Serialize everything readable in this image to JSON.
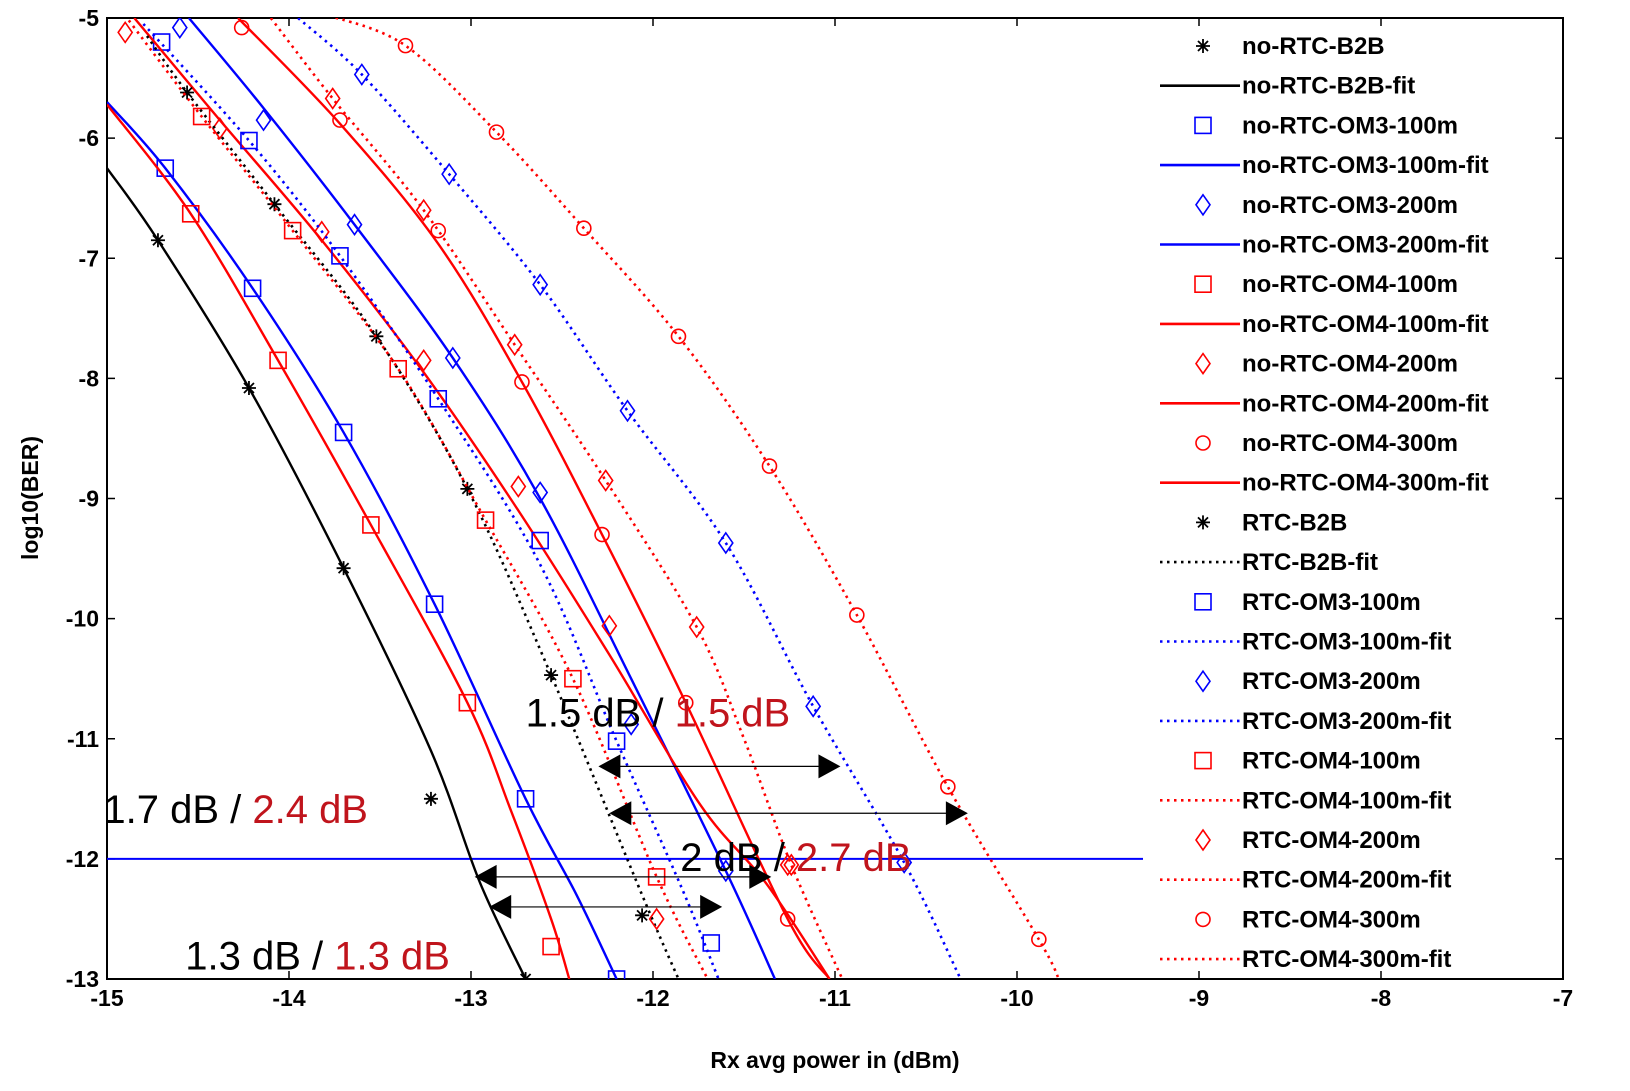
{
  "chart_data": {
    "type": "line",
    "xlabel": "Rx avg power in (dBm)",
    "ylabel": "log10(BER)",
    "xlim": [
      -15,
      -7
    ],
    "ylim": [
      -13,
      -5
    ],
    "xticks": [
      "-15",
      "-14",
      "-13",
      "-12",
      "-11",
      "-10",
      "-9",
      "-8",
      "-7"
    ],
    "yticks": [
      "-5",
      "-6",
      "-7",
      "-8",
      "-9",
      "-10",
      "-11",
      "-12",
      "-13"
    ],
    "grid": false,
    "legend_position": "right",
    "reference_line": {
      "y": -12,
      "color": "#0000ff"
    },
    "colors": {
      "black": "#000000",
      "blue": "#0000ff",
      "red": "#ff0000",
      "annotation_red": "#c0141c"
    },
    "series": [
      {
        "name": "no-RTC-B2B",
        "color": "#000000",
        "marker": "star",
        "line": "none",
        "points": [
          [
            -14.72,
            -6.85
          ],
          [
            -14.22,
            -8.08
          ],
          [
            -13.7,
            -9.58
          ],
          [
            -13.22,
            -11.5
          ],
          [
            -12.7,
            -13.0
          ]
        ]
      },
      {
        "name": "no-RTC-B2B-fit",
        "color": "#000000",
        "marker": "none",
        "line": "solid",
        "points": [
          [
            -15.0,
            -6.25
          ],
          [
            -14.72,
            -6.85
          ],
          [
            -14.22,
            -8.08
          ],
          [
            -13.7,
            -9.58
          ],
          [
            -13.22,
            -11.1
          ],
          [
            -12.95,
            -12.2
          ],
          [
            -12.7,
            -13.0
          ]
        ]
      },
      {
        "name": "no-RTC-OM3-100m",
        "color": "#0000ff",
        "marker": "square",
        "line": "none",
        "points": [
          [
            -14.7,
            -5.2
          ],
          [
            -14.68,
            -6.25
          ],
          [
            -14.2,
            -7.25
          ],
          [
            -13.7,
            -8.45
          ],
          [
            -13.2,
            -9.88
          ],
          [
            -12.7,
            -11.5
          ],
          [
            -12.2,
            -13.0
          ]
        ]
      },
      {
        "name": "no-RTC-OM3-100m-fit",
        "color": "#0000ff",
        "marker": "none",
        "line": "solid",
        "points": [
          [
            -15.0,
            -5.7
          ],
          [
            -14.68,
            -6.25
          ],
          [
            -14.2,
            -7.25
          ],
          [
            -13.7,
            -8.45
          ],
          [
            -13.2,
            -9.88
          ],
          [
            -12.7,
            -11.5
          ],
          [
            -12.42,
            -12.3
          ],
          [
            -12.2,
            -13.0
          ]
        ]
      },
      {
        "name": "no-RTC-OM3-200m",
        "color": "#0000ff",
        "marker": "diamond",
        "line": "none",
        "points": [
          [
            -14.6,
            -5.08
          ],
          [
            -14.14,
            -5.85
          ],
          [
            -13.64,
            -6.72
          ],
          [
            -13.1,
            -7.83
          ],
          [
            -12.62,
            -8.95
          ],
          [
            -12.12,
            -10.88
          ],
          [
            -11.6,
            -12.1
          ]
        ]
      },
      {
        "name": "no-RTC-OM3-200m-fit",
        "color": "#0000ff",
        "marker": "none",
        "line": "solid",
        "points": [
          [
            -14.55,
            -5.0
          ],
          [
            -14.14,
            -5.75
          ],
          [
            -13.64,
            -6.72
          ],
          [
            -13.1,
            -7.83
          ],
          [
            -12.62,
            -9.0
          ],
          [
            -12.12,
            -10.5
          ],
          [
            -11.6,
            -12.1
          ],
          [
            -11.33,
            -13.0
          ]
        ]
      },
      {
        "name": "no-RTC-OM4-100m",
        "color": "#ff0000",
        "marker": "square",
        "line": "none",
        "points": [
          [
            -14.54,
            -6.63
          ],
          [
            -14.06,
            -7.85
          ],
          [
            -13.55,
            -9.22
          ],
          [
            -13.02,
            -10.7
          ],
          [
            -12.56,
            -12.73
          ]
        ]
      },
      {
        "name": "no-RTC-OM4-100m-fit",
        "color": "#ff0000",
        "marker": "none",
        "line": "solid",
        "points": [
          [
            -15.0,
            -5.72
          ],
          [
            -14.54,
            -6.63
          ],
          [
            -14.06,
            -7.85
          ],
          [
            -13.55,
            -9.22
          ],
          [
            -13.02,
            -10.7
          ],
          [
            -12.78,
            -11.6
          ],
          [
            -12.56,
            -12.5
          ],
          [
            -12.46,
            -13.0
          ]
        ]
      },
      {
        "name": "no-RTC-OM4-200m",
        "color": "#ff0000",
        "marker": "diamond",
        "line": "none",
        "points": [
          [
            -14.9,
            -5.12
          ],
          [
            -14.38,
            -5.92
          ],
          [
            -13.82,
            -6.78
          ],
          [
            -13.26,
            -7.85
          ],
          [
            -12.74,
            -8.9
          ],
          [
            -12.24,
            -10.06
          ],
          [
            -11.24,
            -12.05
          ]
        ]
      },
      {
        "name": "no-RTC-OM4-200m-fit",
        "color": "#ff0000",
        "marker": "none",
        "line": "solid",
        "points": [
          [
            -14.85,
            -5.0
          ],
          [
            -14.38,
            -5.85
          ],
          [
            -13.82,
            -6.85
          ],
          [
            -13.26,
            -7.95
          ],
          [
            -12.74,
            -9.1
          ],
          [
            -12.24,
            -10.3
          ],
          [
            -11.74,
            -11.55
          ],
          [
            -11.38,
            -12.2
          ],
          [
            -11.03,
            -13.0
          ]
        ]
      },
      {
        "name": "no-RTC-OM4-300m",
        "color": "#ff0000",
        "marker": "circle",
        "line": "none",
        "points": [
          [
            -14.26,
            -5.08
          ],
          [
            -13.72,
            -5.85
          ],
          [
            -13.18,
            -6.77
          ],
          [
            -12.72,
            -8.03
          ],
          [
            -12.28,
            -9.3
          ],
          [
            -11.82,
            -10.7
          ],
          [
            -11.26,
            -12.5
          ]
        ]
      },
      {
        "name": "no-RTC-OM4-300m-fit",
        "color": "#ff0000",
        "marker": "none",
        "line": "solid",
        "points": [
          [
            -14.28,
            -5.0
          ],
          [
            -13.72,
            -5.88
          ],
          [
            -13.18,
            -6.88
          ],
          [
            -12.72,
            -8.03
          ],
          [
            -12.28,
            -9.3
          ],
          [
            -11.82,
            -10.7
          ],
          [
            -11.26,
            -12.5
          ],
          [
            -11.03,
            -13.0
          ]
        ]
      },
      {
        "name": "RTC-B2B",
        "color": "#000000",
        "marker": "star",
        "line": "none",
        "points": [
          [
            -14.56,
            -5.62
          ],
          [
            -14.08,
            -6.55
          ],
          [
            -13.52,
            -7.65
          ],
          [
            -13.02,
            -8.92
          ],
          [
            -12.56,
            -10.47
          ],
          [
            -12.06,
            -12.47
          ]
        ]
      },
      {
        "name": "RTC-B2B-fit",
        "color": "#000000",
        "marker": "none",
        "line": "dotted",
        "points": [
          [
            -14.78,
            -5.15
          ],
          [
            -14.56,
            -5.62
          ],
          [
            -14.08,
            -6.55
          ],
          [
            -13.52,
            -7.65
          ],
          [
            -13.02,
            -8.92
          ],
          [
            -12.56,
            -10.47
          ],
          [
            -12.06,
            -12.3
          ],
          [
            -11.86,
            -13.0
          ]
        ]
      },
      {
        "name": "RTC-OM3-100m",
        "color": "#0000ff",
        "marker": "square",
        "line": "none",
        "points": [
          [
            -14.22,
            -6.02
          ],
          [
            -13.72,
            -6.98
          ],
          [
            -13.18,
            -8.17
          ],
          [
            -12.62,
            -9.35
          ],
          [
            -12.2,
            -11.02
          ],
          [
            -11.68,
            -12.7
          ]
        ]
      },
      {
        "name": "RTC-OM3-100m-fit",
        "color": "#0000ff",
        "marker": "none",
        "line": "dotted",
        "points": [
          [
            -14.8,
            -5.05
          ],
          [
            -14.22,
            -6.02
          ],
          [
            -13.72,
            -6.98
          ],
          [
            -13.18,
            -8.17
          ],
          [
            -12.62,
            -9.55
          ],
          [
            -12.2,
            -11.02
          ],
          [
            -11.84,
            -12.25
          ],
          [
            -11.64,
            -13.0
          ]
        ]
      },
      {
        "name": "RTC-OM3-200m",
        "color": "#0000ff",
        "marker": "diamond",
        "line": "none",
        "points": [
          [
            -13.6,
            -5.47
          ],
          [
            -13.12,
            -6.3
          ],
          [
            -12.62,
            -7.22
          ],
          [
            -12.14,
            -8.27
          ],
          [
            -11.6,
            -9.37
          ],
          [
            -11.12,
            -10.73
          ],
          [
            -10.62,
            -12.03
          ]
        ]
      },
      {
        "name": "RTC-OM3-200m-fit",
        "color": "#0000ff",
        "marker": "none",
        "line": "dotted",
        "points": [
          [
            -13.95,
            -5.0
          ],
          [
            -13.6,
            -5.47
          ],
          [
            -13.12,
            -6.3
          ],
          [
            -12.62,
            -7.22
          ],
          [
            -12.14,
            -8.27
          ],
          [
            -11.6,
            -9.37
          ],
          [
            -11.12,
            -10.73
          ],
          [
            -10.62,
            -12.03
          ],
          [
            -10.31,
            -13.0
          ]
        ]
      },
      {
        "name": "RTC-OM4-100m",
        "color": "#ff0000",
        "marker": "square",
        "line": "none",
        "points": [
          [
            -14.48,
            -5.82
          ],
          [
            -13.98,
            -6.77
          ],
          [
            -13.4,
            -7.92
          ],
          [
            -12.92,
            -9.18
          ],
          [
            -12.44,
            -10.5
          ],
          [
            -11.98,
            -12.15
          ]
        ]
      },
      {
        "name": "RTC-OM4-100m-fit",
        "color": "#ff0000",
        "marker": "none",
        "line": "dotted",
        "points": [
          [
            -14.88,
            -5.02
          ],
          [
            -14.48,
            -5.82
          ],
          [
            -13.98,
            -6.77
          ],
          [
            -13.4,
            -7.92
          ],
          [
            -12.92,
            -9.18
          ],
          [
            -12.44,
            -10.5
          ],
          [
            -11.98,
            -12.15
          ],
          [
            -11.7,
            -13.0
          ]
        ]
      },
      {
        "name": "RTC-OM4-200m",
        "color": "#ff0000",
        "marker": "diamond",
        "line": "none",
        "points": [
          [
            -13.76,
            -5.67
          ],
          [
            -13.26,
            -6.6
          ],
          [
            -12.76,
            -7.72
          ],
          [
            -12.26,
            -8.85
          ],
          [
            -11.76,
            -10.07
          ],
          [
            -11.26,
            -12.05
          ],
          [
            -11.98,
            -12.5
          ]
        ]
      },
      {
        "name": "RTC-OM4-200m-fit",
        "color": "#ff0000",
        "marker": "none",
        "line": "dotted",
        "points": [
          [
            -14.1,
            -5.0
          ],
          [
            -13.76,
            -5.67
          ],
          [
            -13.26,
            -6.6
          ],
          [
            -12.76,
            -7.72
          ],
          [
            -12.26,
            -8.85
          ],
          [
            -11.76,
            -10.07
          ],
          [
            -11.5,
            -11.0
          ],
          [
            -11.24,
            -12.05
          ],
          [
            -10.96,
            -13.0
          ]
        ]
      },
      {
        "name": "RTC-OM4-300m",
        "color": "#ff0000",
        "marker": "circle",
        "line": "none",
        "points": [
          [
            -13.36,
            -5.23
          ],
          [
            -12.86,
            -5.95
          ],
          [
            -12.38,
            -6.75
          ],
          [
            -11.86,
            -7.65
          ],
          [
            -11.36,
            -8.73
          ],
          [
            -10.88,
            -9.97
          ],
          [
            -10.38,
            -11.4
          ],
          [
            -9.88,
            -12.67
          ]
        ]
      },
      {
        "name": "RTC-OM4-300m-fit",
        "color": "#ff0000",
        "marker": "none",
        "line": "dotted",
        "points": [
          [
            -13.78,
            -4.98
          ],
          [
            -13.36,
            -5.23
          ],
          [
            -12.86,
            -5.95
          ],
          [
            -12.38,
            -6.75
          ],
          [
            -11.86,
            -7.65
          ],
          [
            -11.36,
            -8.73
          ],
          [
            -10.88,
            -9.97
          ],
          [
            -10.38,
            -11.4
          ],
          [
            -9.88,
            -12.67
          ],
          [
            -9.77,
            -13.0
          ]
        ]
      }
    ],
    "annotations": [
      {
        "black": "1.5 dB / ",
        "red": "1.5 dB",
        "x": -12.7,
        "y": -10.9
      },
      {
        "black": "1.7 dB / ",
        "red": "2.4 dB",
        "x": -15.02,
        "y": -11.7
      },
      {
        "black": "2 dB / ",
        "red": "2.7 dB",
        "x": -11.85,
        "y": -12.1
      },
      {
        "black": "1.3 dB / ",
        "red": "1.3 dB",
        "x": -14.57,
        "y": -12.92
      }
    ],
    "arrows": [
      {
        "x1": -12.3,
        "x2": -10.97,
        "y": -11.23
      },
      {
        "x1": -12.24,
        "x2": -10.27,
        "y": -11.62
      },
      {
        "x1": -12.98,
        "x2": -11.35,
        "y": -12.15
      },
      {
        "x1": -12.9,
        "x2": -11.62,
        "y": -12.4
      }
    ]
  }
}
